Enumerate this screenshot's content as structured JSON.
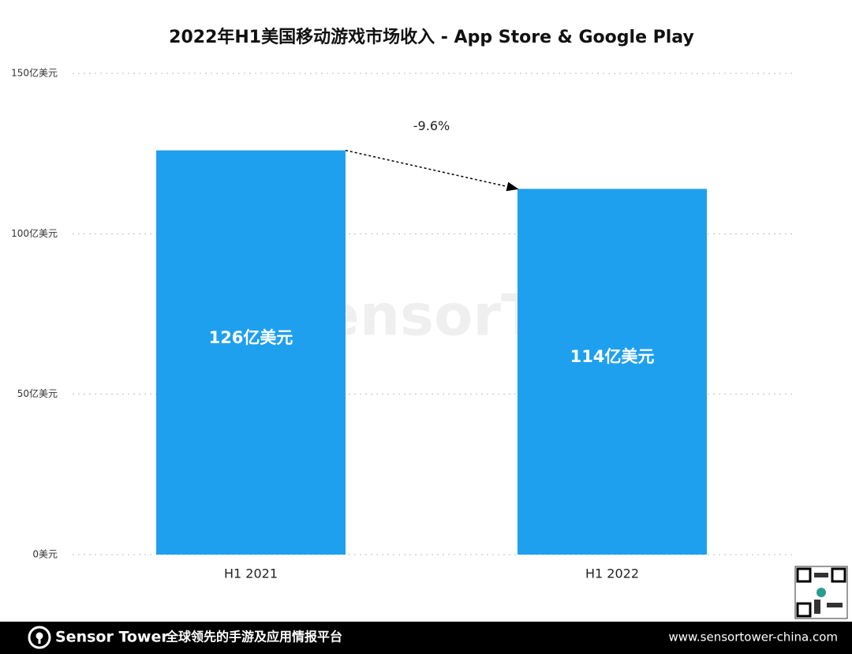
{
  "chart_data": {
    "type": "bar",
    "title": "2022年H1美国移动游戏市场收入 - App Store & Google Play",
    "categories": [
      "H1 2021",
      "H1 2022"
    ],
    "values": [
      126,
      114
    ],
    "value_labels": [
      "126亿美元",
      "114亿美元"
    ],
    "color": "#1fa0ee",
    "ylim": [
      0,
      150
    ],
    "yticks": [
      {
        "value": 0,
        "label": "0美元"
      },
      {
        "value": 50,
        "label": "50亿美元"
      },
      {
        "value": 100,
        "label": "100亿美元"
      },
      {
        "value": 150,
        "label": "150亿美元"
      }
    ],
    "grid": true,
    "annotation": "-9.6%",
    "watermark": "SensorTower"
  },
  "footer": {
    "brand": "Sensor Tower",
    "tagline": "全球领先的手游及应用情报平台",
    "url": "www.sensortower-china.com"
  }
}
